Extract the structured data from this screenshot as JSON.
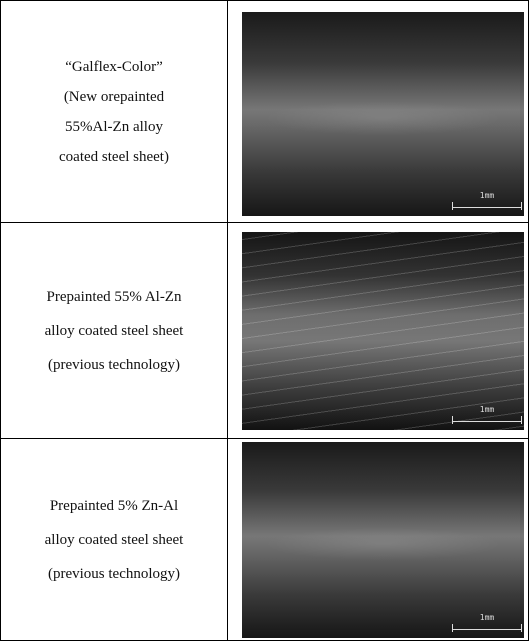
{
  "table": {
    "rows": [
      {
        "lines": [
          "“Galflex-Color”",
          "(New orepainted",
          "55%Al-Zn alloy",
          "coated steel sheet)"
        ],
        "scale_label": "1mm"
      },
      {
        "lines": [
          "Prepainted 55% Al-Zn",
          "alloy coated steel sheet",
          "(previous technology)"
        ],
        "scale_label": "1mm"
      },
      {
        "lines": [
          "Prepainted 5% Zn-Al",
          "alloy coated steel sheet",
          "(previous technology)"
        ],
        "scale_label": "1mm"
      }
    ]
  }
}
